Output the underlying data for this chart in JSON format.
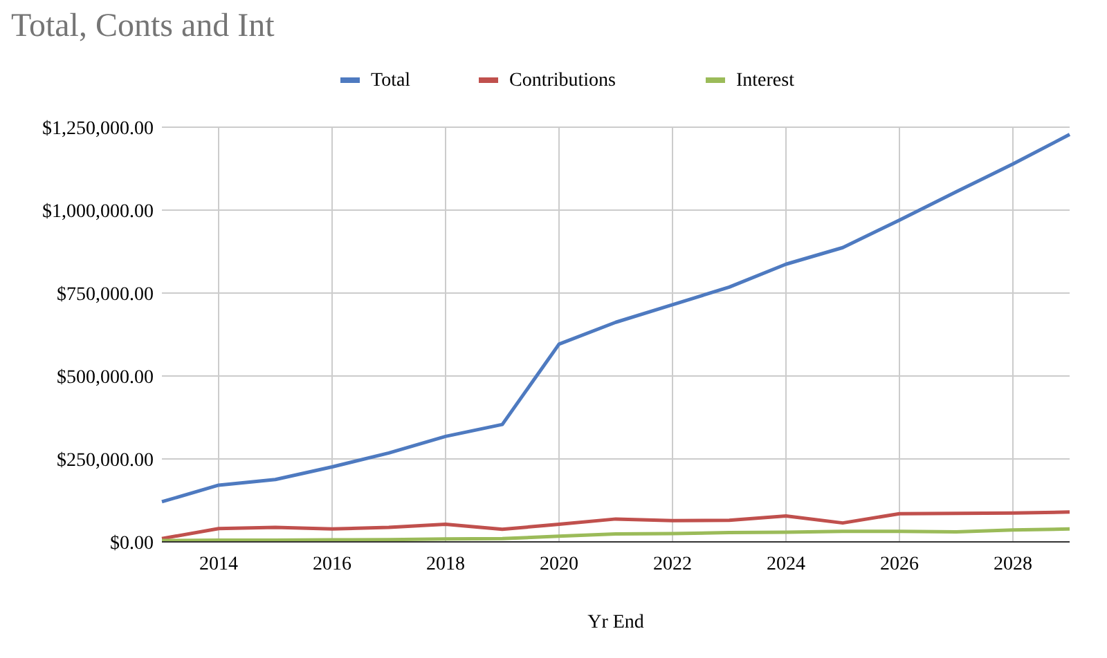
{
  "chart_data": {
    "type": "line",
    "title": "Total, Conts and Int",
    "xlabel": "Yr End",
    "x": [
      2013,
      2014,
      2015,
      2016,
      2017,
      2018,
      2019,
      2020,
      2021,
      2022,
      2023,
      2024,
      2025,
      2026,
      2027,
      2028,
      2029
    ],
    "series": [
      {
        "name": "Total",
        "color": "#4e7ac0",
        "values": [
          121000,
          171000,
          188000,
          226000,
          268000,
          318000,
          354000,
          596000,
          662000,
          715000,
          768000,
          837000,
          887000,
          970000,
          1055000,
          1139000,
          1228000
        ]
      },
      {
        "name": "Contributions",
        "color": "#c0504d",
        "values": [
          10000,
          40000,
          44000,
          39000,
          44000,
          53000,
          38000,
          53000,
          69000,
          64000,
          65000,
          78000,
          57000,
          85000,
          86000,
          87000,
          90000
        ]
      },
      {
        "name": "Interest",
        "color": "#9bbb59",
        "values": [
          4000,
          5000,
          5000,
          6000,
          7000,
          9000,
          10000,
          17000,
          24000,
          25000,
          28000,
          29000,
          32000,
          32000,
          30000,
          36000,
          39000
        ]
      }
    ],
    "xlim": [
      2013,
      2029
    ],
    "xticks": [
      2014,
      2016,
      2018,
      2020,
      2022,
      2024,
      2026,
      2028
    ],
    "ylim": [
      0,
      1250000
    ],
    "yticks": [
      {
        "value": 0,
        "label": "$0.00"
      },
      {
        "value": 250000,
        "label": "$250,000.00"
      },
      {
        "value": 500000,
        "label": "$500,000.00"
      },
      {
        "value": 750000,
        "label": "$750,000.00"
      },
      {
        "value": 1000000,
        "label": "$1,000,000.00"
      },
      {
        "value": 1250000,
        "label": "$1,250,000.00"
      }
    ],
    "grid": true,
    "legend": "top",
    "marker": "none",
    "line_style": "solid"
  }
}
